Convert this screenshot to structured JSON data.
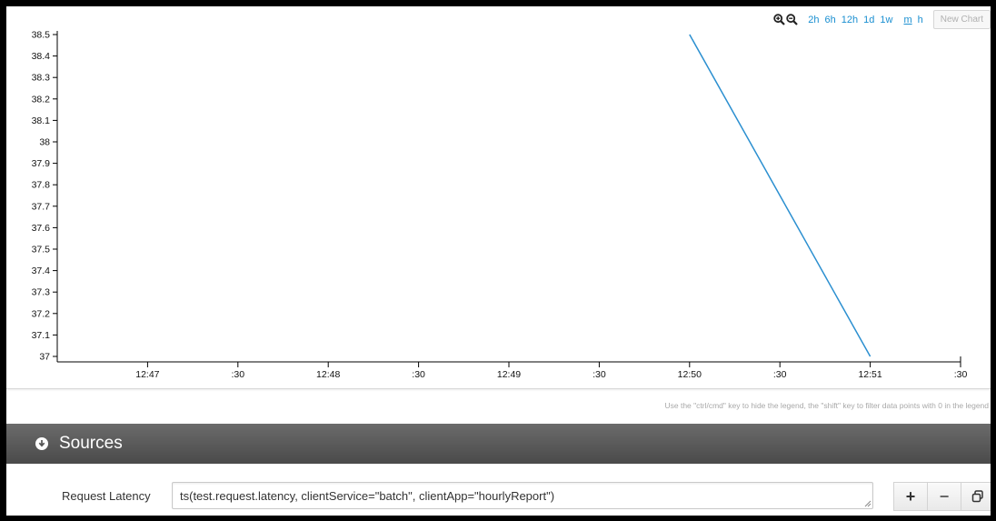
{
  "toolbar": {
    "zoom_in": "zoom-in-icon",
    "zoom_out": "zoom-out-icon",
    "ranges": [
      "2h",
      "6h",
      "12h",
      "1d",
      "1w"
    ],
    "unit_links": [
      "m",
      "h"
    ],
    "active_unit": "m",
    "new_chart_label": "New Chart"
  },
  "chart_data": {
    "type": "line",
    "title": "",
    "xlabel": "",
    "ylabel": "",
    "y_ticks": [
      "38.5",
      "38.4",
      "38.3",
      "38.2",
      "38.1",
      "38",
      "37.9",
      "37.8",
      "37.7",
      "37.6",
      "37.5",
      "37.4",
      "37.3",
      "37.2",
      "37.1",
      "37"
    ],
    "ylim": [
      37,
      38.5
    ],
    "x_ticks": [
      "12:47",
      ":30",
      "12:48",
      ":30",
      "12:49",
      ":30",
      "12:50",
      ":30",
      "12:51",
      ":30"
    ],
    "x_tick_values_min": [
      0,
      0.5,
      1,
      1.5,
      2,
      2.5,
      3,
      3.5,
      4,
      4.5
    ],
    "xlim_min": [
      -0.5,
      4.5
    ],
    "series": [
      {
        "x": [
          "12:50",
          "12:51"
        ],
        "x_min": [
          3,
          4
        ],
        "values": [
          38.5,
          37.0
        ],
        "color": "#2b8fd0"
      }
    ],
    "grid": false,
    "legend": "none"
  },
  "legend_hint": "Use the \"ctrl/cmd\" key to hide the legend, the \"shift\" key to filter data points with 0 in the legend",
  "sources": {
    "title": "Sources",
    "toggle_icon": "circle-down-arrow-icon",
    "rows": [
      {
        "label": "Request Latency",
        "query": "ts(test.request.latency, clientService=\"batch\", clientApp=\"hourlyReport\")"
      }
    ],
    "buttons": {
      "add": "+",
      "remove": "−",
      "copy_icon": "copy-icon"
    }
  }
}
